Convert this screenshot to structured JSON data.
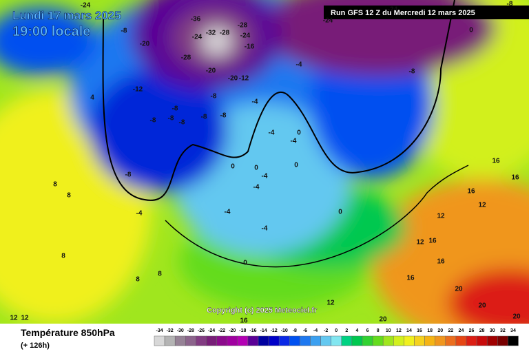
{
  "header": {
    "date": "Lundi 17 mars 2025",
    "time": "19:00 locale",
    "run": "Run GFS 12 Z du Mercredi 12 mars 2025"
  },
  "copyright": "Copyright (c) 2025 Meteociel.fr",
  "map": {
    "labels": [
      -24,
      -8,
      -20,
      -36,
      -24,
      -32,
      -28,
      -28,
      -24,
      -16,
      -28,
      -20,
      -20,
      -12,
      -12,
      -4,
      -8,
      -4,
      -8,
      -8,
      -8,
      -8,
      -8,
      -8,
      -4,
      0,
      -4,
      -8,
      0,
      0,
      -4,
      -4,
      -4,
      -4,
      0,
      0,
      0,
      -8,
      0,
      4,
      8,
      8,
      -4,
      16,
      16,
      16,
      12,
      12,
      16,
      12,
      16,
      16,
      20,
      20,
      20,
      20,
      12,
      16,
      12,
      12,
      8,
      8,
      8,
      -24,
      -24,
      -8
    ]
  },
  "legend": {
    "title": "Température 850hPa",
    "subtitle": "(+ 126h)",
    "ticks": [
      -34,
      -32,
      -30,
      -28,
      -26,
      -24,
      -22,
      -20,
      -18,
      -16,
      -14,
      -12,
      -10,
      -8,
      -6,
      -4,
      -2,
      0,
      2,
      4,
      6,
      8,
      10,
      12,
      14,
      16,
      18,
      20,
      22,
      24,
      26,
      28,
      30,
      32,
      34
    ],
    "colors": [
      "#d8d8d8",
      "#b4b4b4",
      "#968296",
      "#8c648c",
      "#823c82",
      "#781e78",
      "#8c0a8c",
      "#a000a0",
      "#b400b4",
      "#5a0096",
      "#0000a0",
      "#0000c8",
      "#0a28e6",
      "#0050f0",
      "#1e78f0",
      "#3ca0f0",
      "#64c8f0",
      "#82e6f0",
      "#00d282",
      "#00c850",
      "#32d232",
      "#64dc1e",
      "#a0e61e",
      "#d2f01e",
      "#f0f01e",
      "#f5d21e",
      "#f5b414",
      "#f0961e",
      "#eb6e1e",
      "#e64614",
      "#dc1e14",
      "#c80a0a",
      "#a00000",
      "#780000",
      "#000000"
    ]
  }
}
